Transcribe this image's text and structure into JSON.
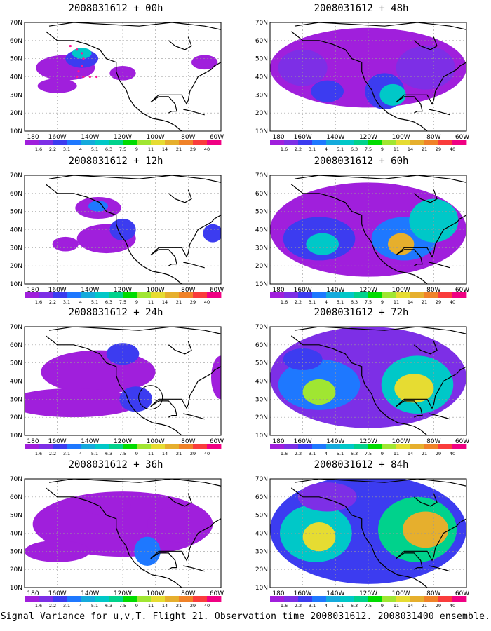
{
  "panels": [
    {
      "title": "2008031612 + 00h"
    },
    {
      "title": "2008031612 + 12h"
    },
    {
      "title": "2008031612 + 24h"
    },
    {
      "title": "2008031612 + 36h"
    },
    {
      "title": "2008031612 + 48h"
    },
    {
      "title": "2008031612 + 60h"
    },
    {
      "title": "2008031612 + 72h"
    },
    {
      "title": "2008031612 + 84h"
    }
  ],
  "axis": {
    "lat_labels": [
      "70N",
      "60N",
      "50N",
      "40N",
      "30N",
      "20N",
      "10N"
    ],
    "lon_labels": [
      "180",
      "160W",
      "140W",
      "120W",
      "100W",
      "80W",
      "60W"
    ]
  },
  "colorbar": {
    "labels": [
      "1.6",
      "2.2",
      "3.1",
      "4",
      "5.1",
      "6.3",
      "7.5",
      "9",
      "11",
      "14",
      "21",
      "29",
      "40"
    ],
    "colors": [
      "#a01fdc",
      "#7d2fe6",
      "#3c3cf0",
      "#1e78ff",
      "#14aadc",
      "#00c8c8",
      "#00d28c",
      "#00dc00",
      "#a0e632",
      "#e6dc32",
      "#e6af2d",
      "#f08228",
      "#fa3c3c",
      "#f00082"
    ]
  },
  "caption": "Signal Variance for u,v,T. Flight 21. Observation time 2008031612. 2008031400 ensemble."
}
